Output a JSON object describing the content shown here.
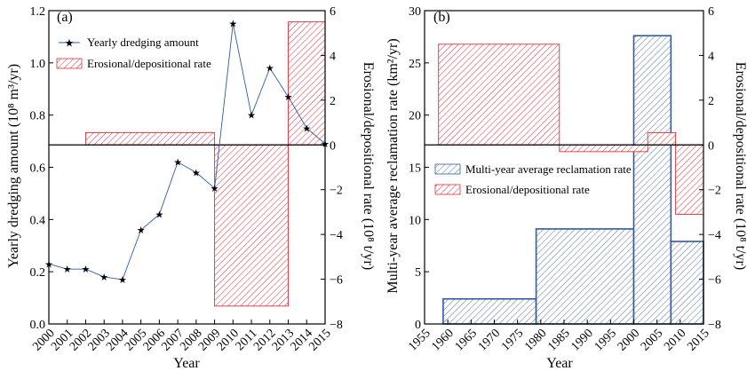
{
  "chart_data": [
    {
      "type": "bar",
      "panel_label": "(a)",
      "xlabel": "Year",
      "ylabel": "Yearly dredging amount (10⁸ m³/yr)",
      "y2label": "Erosional/depositional rate (10⁸ t/yr)",
      "x_ticks": [
        "2000",
        "2001",
        "2002",
        "2003",
        "2004",
        "2005",
        "2006",
        "2007",
        "2008",
        "2009",
        "2010",
        "2011",
        "2012",
        "2013",
        "2014",
        "2015"
      ],
      "xlim": [
        2000,
        2015
      ],
      "ylim": [
        0,
        1.2
      ],
      "y_ticks": [
        "0.0",
        "0.2",
        "0.4",
        "0.6",
        "0.8",
        "1.0",
        "1.2"
      ],
      "y2lim": [
        -8,
        6
      ],
      "y2_ticks": [
        "−8",
        "−6",
        "−4",
        "−2",
        "0",
        "2",
        "4",
        "6"
      ],
      "legend_position": "top-left",
      "series": [
        {
          "name": "Yearly dredging amount",
          "kind": "line",
          "axis": "left",
          "color": "#2e5aa8",
          "marker": "star",
          "x": [
            2000,
            2001,
            2002,
            2003,
            2004,
            2005,
            2006,
            2007,
            2008,
            2009,
            2010,
            2011,
            2012,
            2013,
            2014,
            2015
          ],
          "values": [
            0.23,
            0.21,
            0.21,
            0.18,
            0.17,
            0.36,
            0.42,
            0.62,
            0.58,
            0.52,
            1.15,
            0.8,
            0.98,
            0.87,
            0.75,
            0.69
          ]
        },
        {
          "name": "Erosional/depositional rate",
          "kind": "bar",
          "axis": "right",
          "color": "#e0303a",
          "hatch": true,
          "bars": [
            {
              "x0": 2002,
              "x1": 2009,
              "value": 0.55
            },
            {
              "x0": 2009,
              "x1": 2013,
              "value": -7.2
            },
            {
              "x0": 2013,
              "x1": 2015,
              "value": 5.5
            }
          ]
        }
      ]
    },
    {
      "type": "bar",
      "panel_label": "(b)",
      "xlabel": "Year",
      "ylabel": "Multi-year average reclamation rate (km²/yr)",
      "y2label": "Erosional/depositional rate (10⁸ t/yr)",
      "x_ticks": [
        "1955",
        "1960",
        "1965",
        "1970",
        "1975",
        "1980",
        "1985",
        "1990",
        "1995",
        "2000",
        "2005",
        "2010",
        "2015"
      ],
      "xlim": [
        1955,
        2015
      ],
      "ylim": [
        0,
        30
      ],
      "y_ticks": [
        "0",
        "5",
        "10",
        "15",
        "20",
        "25",
        "30"
      ],
      "y2lim": [
        -8,
        6
      ],
      "y2_ticks": [
        "−8",
        "−6",
        "−4",
        "−2",
        "0",
        "2",
        "4",
        "6"
      ],
      "legend_position": "center",
      "series": [
        {
          "name": "Multi-year average reclamation rate",
          "kind": "bar",
          "axis": "left",
          "color": "#2e5aa8",
          "hatch": true,
          "bars": [
            {
              "x0": 1959,
              "x1": 1979,
              "value": 2.4
            },
            {
              "x0": 1979,
              "x1": 2000,
              "value": 9.1
            },
            {
              "x0": 2000,
              "x1": 2008,
              "value": 27.6
            },
            {
              "x0": 2008,
              "x1": 2015,
              "value": 7.9
            }
          ]
        },
        {
          "name": "Erosional/depositional rate",
          "kind": "bar",
          "axis": "right",
          "color": "#e0303a",
          "hatch": true,
          "bars": [
            {
              "x0": 1958,
              "x1": 1984,
              "value": 4.5
            },
            {
              "x0": 1984,
              "x1": 2003,
              "value": -0.3
            },
            {
              "x0": 2003,
              "x1": 2009,
              "value": 0.55
            },
            {
              "x0": 2009,
              "x1": 2015,
              "value": -3.1
            }
          ]
        }
      ]
    }
  ]
}
